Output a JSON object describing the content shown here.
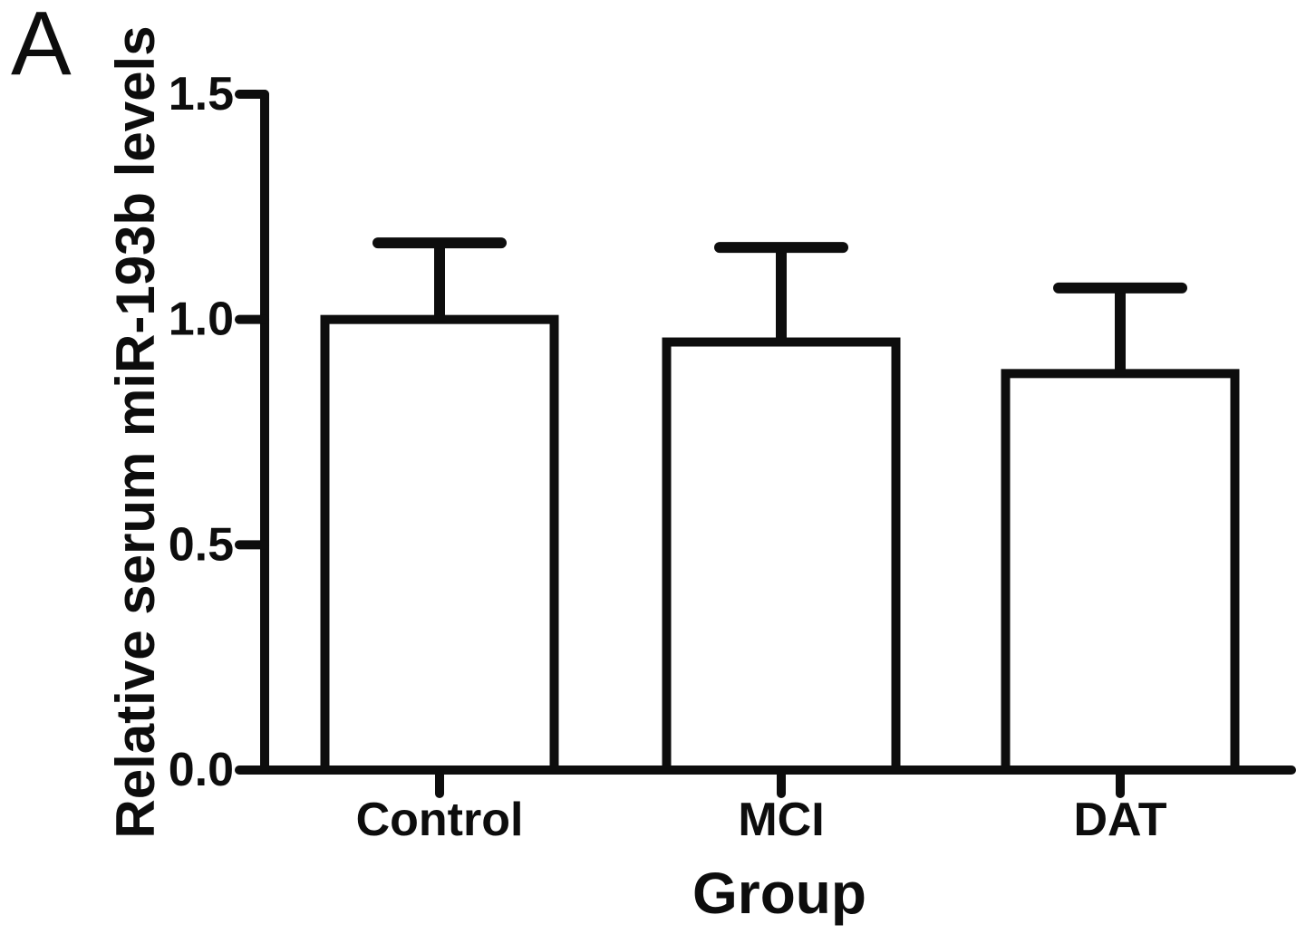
{
  "figure": {
    "panel_label": "A",
    "background": "#ffffff",
    "ink_color": "#0d0d0d"
  },
  "chart_data": {
    "type": "bar",
    "title": "",
    "xlabel": "Group",
    "ylabel": "Relative serum miR-193b levels",
    "categories": [
      "Control",
      "MCI",
      "DAT"
    ],
    "values": [
      1.0,
      0.95,
      0.88
    ],
    "error_upper": [
      0.17,
      0.21,
      0.19
    ],
    "error_style": "upper-only-capped",
    "ylim": [
      0,
      1.5
    ],
    "yticks": [
      0.0,
      0.5,
      1.0,
      1.5
    ],
    "ytick_labels": [
      "0.0",
      "0.5",
      "1.0",
      "1.5"
    ],
    "grid": false,
    "legend": null,
    "bar_fill": "#ffffff",
    "bar_stroke": "#0d0d0d"
  }
}
